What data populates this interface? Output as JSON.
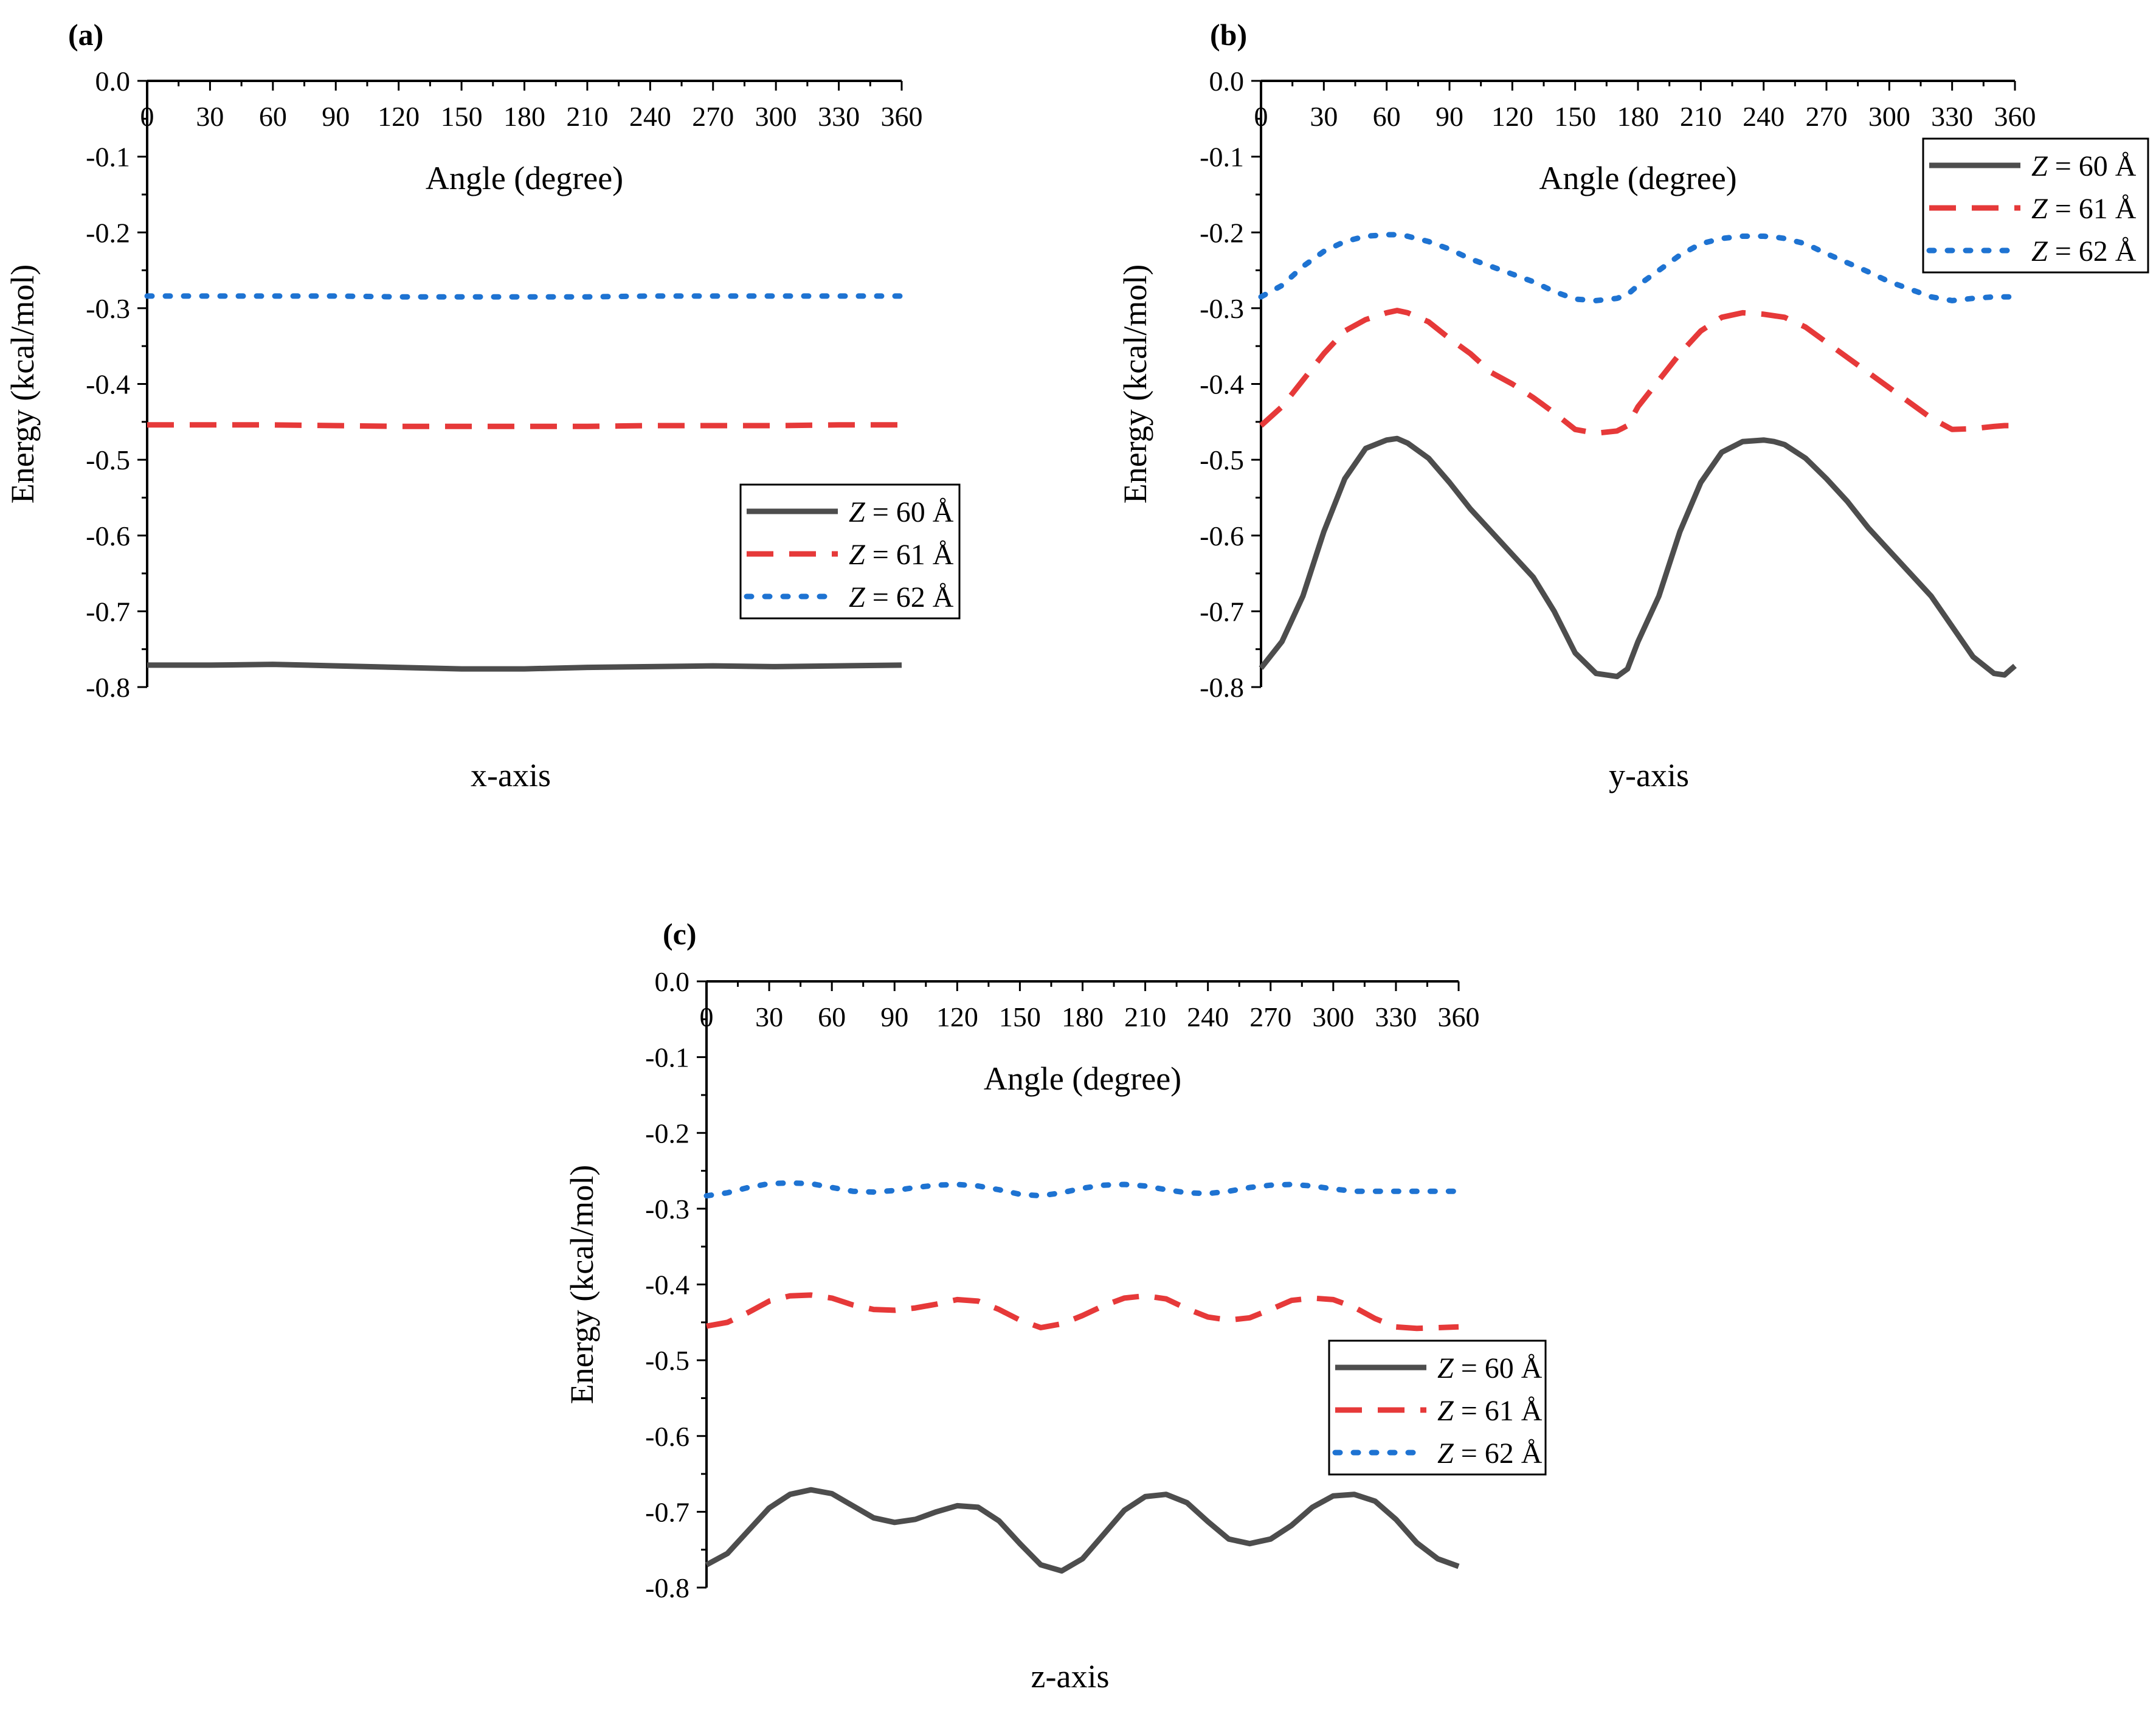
{
  "chart_data": [
    {
      "type": "line",
      "panel_label": "(a)",
      "caption": "x-axis",
      "xlabel": "Angle (degree)",
      "ylabel": "Energy (kcal/mol)",
      "xlim": [
        0,
        360
      ],
      "ylim": [
        -0.8,
        0.0
      ],
      "xticks": [
        "0",
        "30",
        "60",
        "90",
        "120",
        "150",
        "180",
        "210",
        "240",
        "270",
        "300",
        "330",
        "360"
      ],
      "yticks": [
        "0.0",
        "-0.1",
        "-0.2",
        "-0.3",
        "-0.4",
        "-0.5",
        "-0.6",
        "-0.7",
        "-0.8"
      ],
      "legend_position": "right",
      "x": [
        0,
        30,
        60,
        90,
        120,
        150,
        180,
        210,
        240,
        270,
        300,
        330,
        360
      ],
      "series": [
        {
          "name_prefix": "Z",
          "name_suffix": " = 60 Å",
          "style": "solid",
          "color": "#4d4d4d",
          "values": [
            -0.771,
            -0.771,
            -0.77,
            -0.772,
            -0.774,
            -0.776,
            -0.776,
            -0.774,
            -0.773,
            -0.772,
            -0.773,
            -0.772,
            -0.771
          ]
        },
        {
          "name_prefix": "Z",
          "name_suffix": " = 61 Å",
          "style": "dash",
          "color": "#e63939",
          "values": [
            -0.454,
            -0.454,
            -0.454,
            -0.455,
            -0.456,
            -0.456,
            -0.456,
            -0.456,
            -0.455,
            -0.455,
            -0.455,
            -0.454,
            -0.454
          ]
        },
        {
          "name_prefix": "Z",
          "name_suffix": " = 62 Å",
          "style": "dot",
          "color": "#1e73d2",
          "values": [
            -0.284,
            -0.284,
            -0.284,
            -0.284,
            -0.285,
            -0.285,
            -0.285,
            -0.285,
            -0.284,
            -0.284,
            -0.284,
            -0.284,
            -0.284
          ]
        }
      ]
    },
    {
      "type": "line",
      "panel_label": "(b)",
      "caption": "y-axis",
      "xlabel": "Angle (degree)",
      "ylabel": "Energy (kcal/mol)",
      "xlim": [
        0,
        360
      ],
      "ylim": [
        -0.8,
        0.0
      ],
      "xticks": [
        "0",
        "30",
        "60",
        "90",
        "120",
        "150",
        "180",
        "210",
        "240",
        "270",
        "300",
        "330",
        "360"
      ],
      "yticks": [
        "0.0",
        "-0.1",
        "-0.2",
        "-0.3",
        "-0.4",
        "-0.5",
        "-0.6",
        "-0.7",
        "-0.8"
      ],
      "legend_position": "top-right",
      "x": [
        0,
        10,
        20,
        30,
        40,
        50,
        60,
        65,
        70,
        80,
        90,
        100,
        110,
        120,
        130,
        140,
        150,
        160,
        170,
        175,
        180,
        190,
        200,
        210,
        220,
        230,
        240,
        245,
        250,
        260,
        270,
        280,
        290,
        300,
        310,
        320,
        330,
        340,
        350,
        355,
        360
      ],
      "series": [
        {
          "name_prefix": "Z",
          "name_suffix": " = 60 Å",
          "style": "solid",
          "color": "#4d4d4d",
          "values": [
            -0.775,
            -0.74,
            -0.68,
            -0.595,
            -0.525,
            -0.485,
            -0.474,
            -0.472,
            -0.478,
            -0.498,
            -0.53,
            -0.565,
            -0.595,
            -0.625,
            -0.655,
            -0.7,
            -0.755,
            -0.782,
            -0.786,
            -0.776,
            -0.74,
            -0.68,
            -0.595,
            -0.53,
            -0.49,
            -0.476,
            -0.474,
            -0.476,
            -0.48,
            -0.498,
            -0.525,
            -0.555,
            -0.59,
            -0.62,
            -0.65,
            -0.68,
            -0.72,
            -0.76,
            -0.782,
            -0.784,
            -0.772
          ]
        },
        {
          "name_prefix": "Z",
          "name_suffix": " = 61 Å",
          "style": "dash",
          "color": "#e63939",
          "values": [
            -0.455,
            -0.43,
            -0.395,
            -0.36,
            -0.33,
            -0.315,
            -0.306,
            -0.303,
            -0.306,
            -0.318,
            -0.34,
            -0.36,
            -0.385,
            -0.4,
            -0.418,
            -0.438,
            -0.46,
            -0.465,
            -0.462,
            -0.455,
            -0.43,
            -0.395,
            -0.36,
            -0.33,
            -0.312,
            -0.306,
            -0.308,
            -0.31,
            -0.312,
            -0.325,
            -0.345,
            -0.365,
            -0.385,
            -0.405,
            -0.425,
            -0.445,
            -0.46,
            -0.459,
            -0.456,
            -0.455,
            -0.455
          ]
        },
        {
          "name_prefix": "Z",
          "name_suffix": " = 62 Å",
          "style": "dot",
          "color": "#1e73d2",
          "values": [
            -0.285,
            -0.27,
            -0.245,
            -0.225,
            -0.212,
            -0.205,
            -0.203,
            -0.203,
            -0.205,
            -0.212,
            -0.222,
            -0.235,
            -0.245,
            -0.255,
            -0.265,
            -0.278,
            -0.288,
            -0.29,
            -0.287,
            -0.282,
            -0.27,
            -0.25,
            -0.23,
            -0.215,
            -0.208,
            -0.205,
            -0.205,
            -0.206,
            -0.208,
            -0.215,
            -0.228,
            -0.24,
            -0.252,
            -0.265,
            -0.275,
            -0.285,
            -0.29,
            -0.287,
            -0.285,
            -0.285,
            -0.285
          ]
        }
      ]
    },
    {
      "type": "line",
      "panel_label": "(c)",
      "caption": "z-axis",
      "xlabel": "Angle (degree)",
      "ylabel": "Energy (kcal/mol)",
      "xlim": [
        0,
        360
      ],
      "ylim": [
        -0.8,
        0.0
      ],
      "xticks": [
        "0",
        "30",
        "60",
        "90",
        "120",
        "150",
        "180",
        "210",
        "240",
        "270",
        "300",
        "330",
        "360"
      ],
      "yticks": [
        "0.0",
        "-0.1",
        "-0.2",
        "-0.3",
        "-0.4",
        "-0.5",
        "-0.6",
        "-0.7",
        "-0.8"
      ],
      "legend_position": "lower-right",
      "x": [
        0,
        10,
        20,
        30,
        40,
        50,
        60,
        70,
        80,
        90,
        100,
        110,
        120,
        130,
        140,
        150,
        160,
        170,
        180,
        190,
        200,
        210,
        220,
        230,
        240,
        250,
        260,
        270,
        280,
        290,
        300,
        310,
        320,
        330,
        340,
        350,
        360
      ],
      "series": [
        {
          "name_prefix": "Z",
          "name_suffix": " = 60 Å",
          "style": "solid",
          "color": "#4d4d4d",
          "values": [
            -0.77,
            -0.755,
            -0.725,
            -0.695,
            -0.677,
            -0.671,
            -0.676,
            -0.692,
            -0.708,
            -0.714,
            -0.71,
            -0.7,
            -0.692,
            -0.694,
            -0.712,
            -0.742,
            -0.77,
            -0.778,
            -0.762,
            -0.73,
            -0.698,
            -0.68,
            -0.677,
            -0.688,
            -0.713,
            -0.736,
            -0.742,
            -0.736,
            -0.718,
            -0.694,
            -0.679,
            -0.677,
            -0.686,
            -0.71,
            -0.741,
            -0.762,
            -0.772
          ]
        },
        {
          "name_prefix": "Z",
          "name_suffix": " = 61 Å",
          "style": "dash",
          "color": "#e63939",
          "values": [
            -0.455,
            -0.45,
            -0.437,
            -0.422,
            -0.415,
            -0.414,
            -0.418,
            -0.427,
            -0.433,
            -0.434,
            -0.431,
            -0.426,
            -0.42,
            -0.422,
            -0.433,
            -0.447,
            -0.457,
            -0.452,
            -0.441,
            -0.428,
            -0.418,
            -0.415,
            -0.419,
            -0.432,
            -0.443,
            -0.447,
            -0.444,
            -0.433,
            -0.421,
            -0.418,
            -0.42,
            -0.43,
            -0.445,
            -0.456,
            -0.458,
            -0.457,
            -0.456
          ]
        },
        {
          "name_prefix": "Z",
          "name_suffix": " = 62 Å",
          "style": "dot",
          "color": "#1e73d2",
          "values": [
            -0.283,
            -0.279,
            -0.272,
            -0.267,
            -0.266,
            -0.267,
            -0.272,
            -0.277,
            -0.278,
            -0.276,
            -0.272,
            -0.269,
            -0.268,
            -0.27,
            -0.275,
            -0.281,
            -0.283,
            -0.279,
            -0.273,
            -0.269,
            -0.268,
            -0.27,
            -0.275,
            -0.279,
            -0.28,
            -0.277,
            -0.272,
            -0.269,
            -0.268,
            -0.27,
            -0.274,
            -0.277,
            -0.277,
            -0.277,
            -0.277,
            -0.277,
            -0.277
          ]
        }
      ]
    }
  ]
}
